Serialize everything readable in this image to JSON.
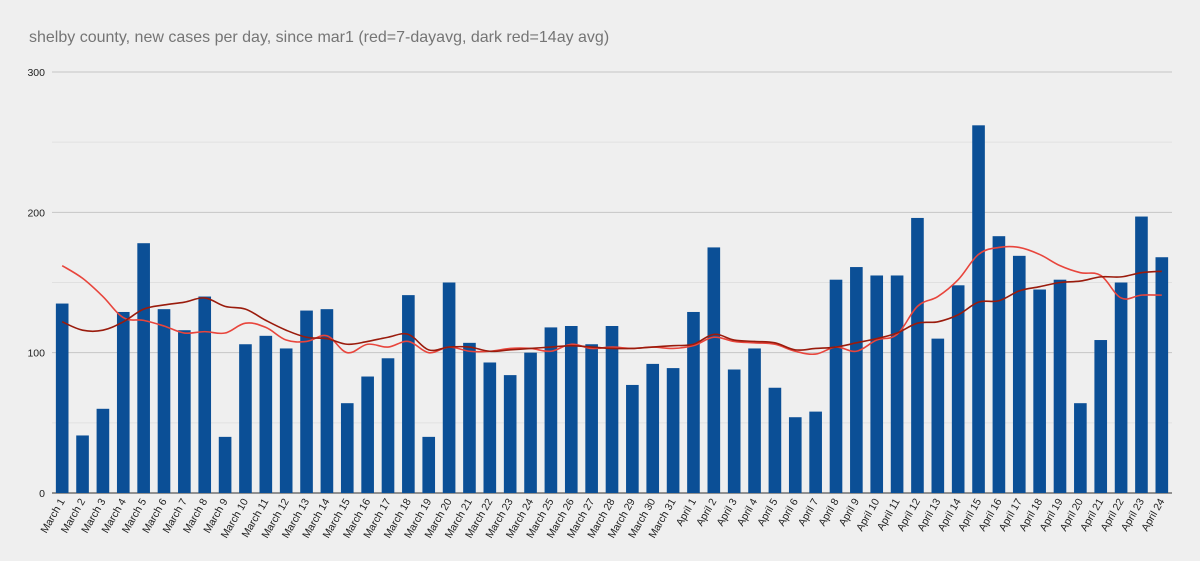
{
  "chart_data": {
    "type": "bar",
    "title": "shelby county, new cases per day, since mar1 (red=7-dayavg, dark red=14ay avg)",
    "xlabel": "",
    "ylabel": "",
    "ylim": [
      0,
      300
    ],
    "yticks": [
      0,
      100,
      200,
      300
    ],
    "grid": true,
    "categories": [
      "March 1",
      "March 2",
      "March 3",
      "March 4",
      "March 5",
      "March 6",
      "March 7",
      "March 8",
      "March 9",
      "March 10",
      "March 11",
      "March 12",
      "March 13",
      "March 14",
      "March 15",
      "March 16",
      "March 17",
      "March 18",
      "March 19",
      "March 20",
      "March 21",
      "March 22",
      "March 23",
      "March 24",
      "March 25",
      "March 26",
      "March 27",
      "March 28",
      "March 29",
      "March 30",
      "March 31",
      "April 1",
      "April 2",
      "April 3",
      "April 4",
      "April 5",
      "April 6",
      "April 7",
      "April 8",
      "April 9",
      "April 10",
      "April 11",
      "April 12",
      "April 13",
      "April 14",
      "April 15",
      "April 16",
      "April 17",
      "April 18",
      "April 19",
      "April 20",
      "April 21",
      "April 22",
      "April 23",
      "April 24"
    ],
    "series": [
      {
        "name": "new cases",
        "kind": "bar",
        "color": "#0b4f96",
        "values": [
          135,
          41,
          60,
          129,
          178,
          131,
          116,
          140,
          40,
          106,
          112,
          103,
          130,
          131,
          64,
          83,
          96,
          141,
          40,
          150,
          107,
          93,
          84,
          100,
          118,
          119,
          106,
          119,
          77,
          92,
          89,
          129,
          175,
          88,
          103,
          75,
          54,
          58,
          152,
          161,
          155,
          155,
          196,
          110,
          148,
          262,
          183,
          169,
          145,
          152,
          64,
          109,
          150,
          197,
          168
        ]
      },
      {
        "name": "7-day avg",
        "kind": "line",
        "color": "#e8453c",
        "values": [
          162,
          153,
          140,
          125,
          123,
          119,
          114,
          115,
          114,
          121,
          118,
          109,
          108,
          112,
          100,
          106,
          104,
          108,
          100,
          104,
          101,
          101,
          103,
          103,
          101,
          106,
          103,
          104,
          103,
          104,
          103,
          105,
          111,
          108,
          107,
          106,
          101,
          99,
          104,
          101,
          109,
          113,
          133,
          140,
          152,
          170,
          175,
          175,
          170,
          162,
          157,
          155,
          139,
          141,
          141
        ]
      },
      {
        "name": "14-day avg",
        "kind": "line",
        "color": "#9a1b0c",
        "values": [
          122,
          116,
          116,
          122,
          131,
          134,
          136,
          139,
          133,
          131,
          123,
          116,
          111,
          110,
          106,
          108,
          111,
          113,
          102,
          104,
          104,
          101,
          102,
          103,
          104,
          105,
          104,
          103,
          103,
          104,
          105,
          106,
          113,
          109,
          108,
          107,
          102,
          103,
          104,
          107,
          110,
          114,
          121,
          122,
          127,
          136,
          137,
          144,
          147,
          150,
          151,
          154,
          154,
          157,
          158
        ]
      }
    ]
  }
}
